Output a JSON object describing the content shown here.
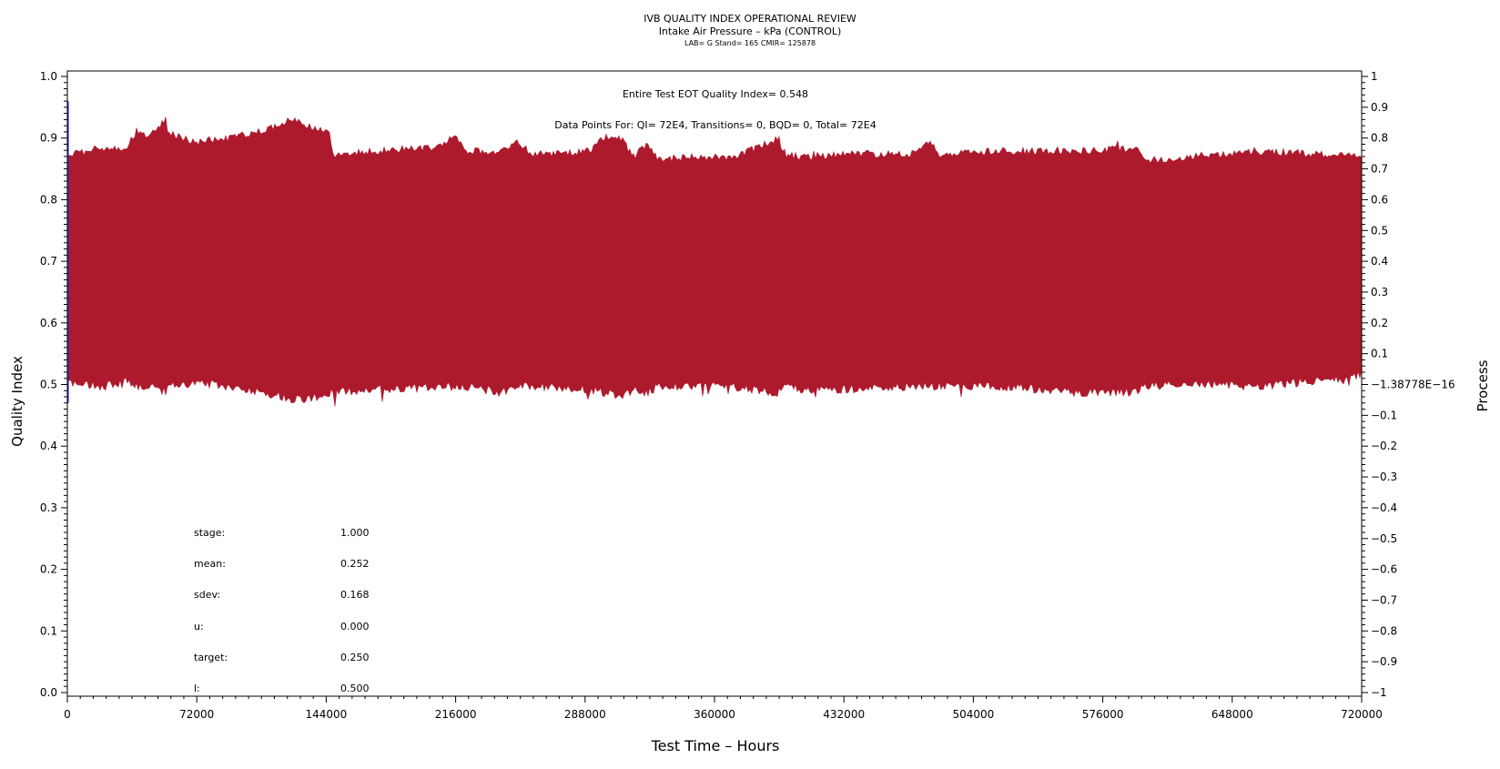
{
  "header": {
    "title": "IVB QUALITY INDEX OPERATIONAL REVIEW",
    "subtitle": "Intake Air Pressure – kPa (CONTROL)",
    "lab_line": "LAB= G Stand= 165 CMIR= 125878"
  },
  "annotations": {
    "eot": "Entire Test EOT Quality Index=   0.548",
    "points": "Data Points For: QI=  72E4, Transitions=      0, BQD=      0, Total=  72E4"
  },
  "stats": [
    {
      "label": "stage:",
      "value": "1.000"
    },
    {
      "label": "mean:",
      "value": "0.252"
    },
    {
      "label": "sdev:",
      "value": "0.168"
    },
    {
      "label": "u:",
      "value": "0.000"
    },
    {
      "label": "target:",
      "value": "0.250"
    },
    {
      "label": "l:",
      "value": "0.500"
    }
  ],
  "colors": {
    "band": "#ae1a2d",
    "spike": "#2b2bcf",
    "axis": "#000000"
  },
  "chart_data": {
    "type": "area",
    "title": "IVB QUALITY INDEX OPERATIONAL REVIEW",
    "xlabel": "Test Time – Hours",
    "ylabel": "Quality Index",
    "y2label": "Process",
    "xlim": [
      0,
      720000
    ],
    "ylim": [
      0,
      1
    ],
    "y2lim": [
      -1,
      1
    ],
    "xticks": [
      0,
      72000,
      144000,
      216000,
      288000,
      360000,
      432000,
      504000,
      576000,
      648000,
      720000
    ],
    "yticks": [
      0.0,
      0.1,
      0.2,
      0.3,
      0.4,
      0.5,
      0.6,
      0.7,
      0.8,
      0.9,
      1.0
    ],
    "ytick_labels": [
      "0.0",
      "0.1",
      "0.2",
      "0.3",
      "0.4",
      "0.5",
      "0.6",
      "0.7",
      "0.8",
      "0.9",
      "1.0"
    ],
    "y2ticks": [
      -1,
      -0.9,
      -0.8,
      -0.7,
      -0.6,
      -0.5,
      -0.4,
      -0.3,
      -0.2,
      -0.1,
      0,
      0.1,
      0.2,
      0.3,
      0.4,
      0.5,
      0.6,
      0.7,
      0.8,
      0.9,
      1
    ],
    "y2tick_labels": [
      "−1",
      "−0.9",
      "−0.8",
      "−0.7",
      "−0.6",
      "−0.5",
      "−0.4",
      "−0.3",
      "−0.2",
      "−0.1",
      "−1.38778E−16",
      "0.1",
      "0.2",
      "0.3",
      "0.4",
      "0.5",
      "0.6",
      "0.7",
      "0.8",
      "0.9",
      "1"
    ],
    "series": [
      {
        "x": [
          0,
          2000,
          20000,
          34000,
          36000,
          48000,
          55000,
          56000,
          70000,
          90000,
          110000,
          125000,
          135000,
          146000,
          148000,
          170000,
          205000,
          215000,
          222000,
          240000,
          250000,
          258000,
          290000,
          300000,
          308000,
          315000,
          322000,
          330000,
          340000,
          370000,
          395000,
          400000,
          408000,
          430000,
          470000,
          480000,
          485000,
          520000,
          560000,
          595000,
          600000,
          620000,
          660000,
          700000,
          720000
        ],
        "upper": [
          0.88,
          0.88,
          0.89,
          0.89,
          0.91,
          0.915,
          0.94,
          0.915,
          0.9,
          0.905,
          0.92,
          0.935,
          0.925,
          0.915,
          0.88,
          0.885,
          0.89,
          0.91,
          0.885,
          0.885,
          0.9,
          0.88,
          0.885,
          0.91,
          0.905,
          0.875,
          0.895,
          0.87,
          0.875,
          0.875,
          0.905,
          0.88,
          0.875,
          0.88,
          0.88,
          0.9,
          0.88,
          0.885,
          0.885,
          0.89,
          0.87,
          0.875,
          0.885,
          0.88,
          0.875
        ],
        "lower": [
          0.5,
          0.495,
          0.49,
          0.5,
          0.49,
          0.49,
          0.48,
          0.49,
          0.495,
          0.49,
          0.48,
          0.47,
          0.47,
          0.48,
          0.48,
          0.485,
          0.49,
          0.49,
          0.49,
          0.48,
          0.49,
          0.49,
          0.485,
          0.48,
          0.475,
          0.485,
          0.48,
          0.49,
          0.49,
          0.49,
          0.48,
          0.49,
          0.485,
          0.485,
          0.49,
          0.49,
          0.49,
          0.49,
          0.48,
          0.48,
          0.49,
          0.495,
          0.49,
          0.5,
          0.51
        ]
      }
    ],
    "start_spike": {
      "x": 0,
      "y_high": 0.96,
      "y_low": 0.47
    }
  }
}
